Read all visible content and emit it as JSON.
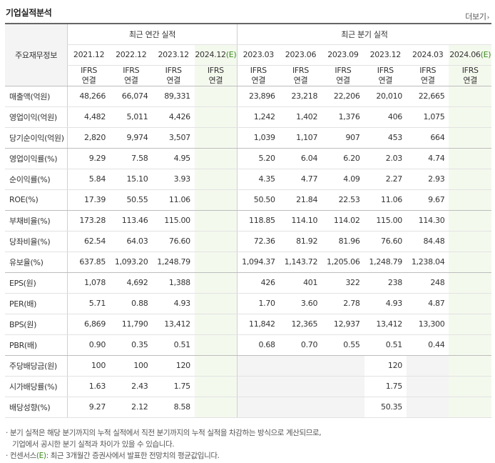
{
  "header": {
    "title": "기업실적분석",
    "more_label": "더보기",
    "more_arrow": "›"
  },
  "table": {
    "row_header_label": "주요재무정보",
    "annual_group": "최근 연간 실적",
    "quarterly_group": "최근 분기 실적",
    "annual_periods": [
      "2021.12",
      "2022.12",
      "2023.12",
      "2024.12"
    ],
    "annual_estimate": [
      false,
      false,
      false,
      true
    ],
    "quarterly_periods": [
      "2023.03",
      "2023.06",
      "2023.09",
      "2023.12",
      "2024.03",
      "2024.06"
    ],
    "quarterly_estimate": [
      false,
      false,
      false,
      false,
      false,
      true
    ],
    "estimate_mark": "(E)",
    "standard_line1": "IFRS",
    "standard_line2": "연결",
    "rows": [
      {
        "label": "매출액(억원)",
        "annual": [
          "48,266",
          "66,074",
          "89,331",
          ""
        ],
        "quarterly": [
          "23,896",
          "23,218",
          "22,206",
          "20,010",
          "22,665",
          ""
        ]
      },
      {
        "label": "영업이익(억원)",
        "annual": [
          "4,482",
          "5,011",
          "4,426",
          ""
        ],
        "quarterly": [
          "1,242",
          "1,402",
          "1,376",
          "406",
          "1,075",
          ""
        ]
      },
      {
        "label": "당기순이익(억원)",
        "annual": [
          "2,820",
          "9,974",
          "3,507",
          ""
        ],
        "quarterly": [
          "1,039",
          "1,107",
          "907",
          "453",
          "664",
          ""
        ]
      },
      {
        "label": "영업이익률(%)",
        "annual": [
          "9.29",
          "7.58",
          "4.95",
          ""
        ],
        "quarterly": [
          "5.20",
          "6.04",
          "6.20",
          "2.03",
          "4.74",
          ""
        ]
      },
      {
        "label": "순이익률(%)",
        "annual": [
          "5.84",
          "15.10",
          "3.93",
          ""
        ],
        "quarterly": [
          "4.35",
          "4.77",
          "4.09",
          "2.27",
          "2.93",
          ""
        ]
      },
      {
        "label": "ROE(%)",
        "annual": [
          "17.39",
          "50.55",
          "11.06",
          ""
        ],
        "quarterly": [
          "50.50",
          "21.84",
          "22.53",
          "11.06",
          "9.67",
          ""
        ]
      },
      {
        "label": "부채비율(%)",
        "annual": [
          "173.28",
          "113.46",
          "115.00",
          ""
        ],
        "quarterly": [
          "118.85",
          "114.10",
          "114.02",
          "115.00",
          "114.30",
          ""
        ]
      },
      {
        "label": "당좌비율(%)",
        "annual": [
          "62.54",
          "64.03",
          "76.60",
          ""
        ],
        "quarterly": [
          "72.36",
          "81.92",
          "81.96",
          "76.60",
          "84.48",
          ""
        ]
      },
      {
        "label": "유보율(%)",
        "annual": [
          "637.85",
          "1,093.20",
          "1,248.79",
          ""
        ],
        "quarterly": [
          "1,094.37",
          "1,143.72",
          "1,205.06",
          "1,248.79",
          "1,238.04",
          ""
        ]
      },
      {
        "label": "EPS(원)",
        "annual": [
          "1,078",
          "4,692",
          "1,388",
          ""
        ],
        "quarterly": [
          "426",
          "401",
          "322",
          "238",
          "248",
          ""
        ]
      },
      {
        "label": "PER(배)",
        "annual": [
          "5.71",
          "0.88",
          "4.93",
          ""
        ],
        "quarterly": [
          "1.70",
          "3.60",
          "2.78",
          "4.93",
          "4.87",
          ""
        ]
      },
      {
        "label": "BPS(원)",
        "annual": [
          "6,869",
          "11,790",
          "13,412",
          ""
        ],
        "quarterly": [
          "11,842",
          "12,365",
          "12,937",
          "13,412",
          "13,300",
          ""
        ]
      },
      {
        "label": "PBR(배)",
        "annual": [
          "0.90",
          "0.35",
          "0.51",
          ""
        ],
        "quarterly": [
          "0.68",
          "0.70",
          "0.55",
          "0.51",
          "0.44",
          ""
        ]
      },
      {
        "label": "주당배당금(원)",
        "annual": [
          "100",
          "100",
          "120",
          ""
        ],
        "quarterly": [
          "",
          "",
          "",
          "120",
          "",
          ""
        ],
        "quarterly_gray": [
          true,
          true,
          true,
          false,
          true,
          false
        ]
      },
      {
        "label": "시가배당률(%)",
        "annual": [
          "1.63",
          "2.43",
          "1.75",
          ""
        ],
        "quarterly": [
          "",
          "",
          "",
          "1.75",
          "",
          ""
        ],
        "quarterly_gray": [
          true,
          true,
          true,
          false,
          true,
          false
        ]
      },
      {
        "label": "배당성향(%)",
        "annual": [
          "9.27",
          "2.12",
          "8.58",
          ""
        ],
        "quarterly": [
          "",
          "",
          "",
          "50.35",
          "",
          ""
        ],
        "quarterly_gray": [
          true,
          true,
          true,
          false,
          true,
          false
        ]
      }
    ],
    "group_dividers_after": [
      2,
      5,
      8,
      12
    ]
  },
  "notes": {
    "line1": "· 분기 실적은 해당 분기까지의 누적 실적에서 직전 분기까지의 누적 실적을 차감하는 방식으로 계산되므로,",
    "line2": "기업에서 공시한 분기 실적과 차이가 있을 수 있습니다.",
    "line3_prefix": "· 컨센서스",
    "line3_mark": "(E)",
    "line3_suffix": ": 최근 3개월간 증권사에서 발표한 전망치의 평균값입니다."
  },
  "colors": {
    "ifrs": "#e3641e",
    "estimate_bg": "#f4f9ee",
    "estimate_mark": "#3a8a1e",
    "gray_cell": "#f4f4f4"
  }
}
